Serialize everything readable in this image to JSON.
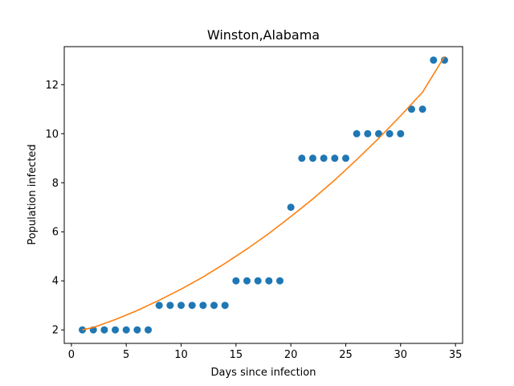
{
  "chart_data": {
    "type": "scatter",
    "title": "Winston,Alabama",
    "xlabel": "Days since infection",
    "ylabel": "Population infected",
    "xlim": [
      -0.65,
      35.65
    ],
    "ylim": [
      1.45,
      13.55
    ],
    "xticks": [
      0,
      5,
      10,
      15,
      20,
      25,
      30,
      35
    ],
    "yticks": [
      2,
      4,
      6,
      8,
      10,
      12
    ],
    "grid": false,
    "legend": "none",
    "series": [
      {
        "kind": "scatter",
        "color": "#1f77b4",
        "x": [
          1,
          2,
          3,
          4,
          5,
          6,
          7,
          8,
          9,
          10,
          11,
          12,
          13,
          14,
          15,
          16,
          17,
          18,
          19,
          20,
          21,
          22,
          23,
          24,
          25,
          26,
          27,
          28,
          29,
          30,
          31,
          32,
          33,
          34
        ],
        "y": [
          2,
          2,
          2,
          2,
          2,
          2,
          2,
          3,
          3,
          3,
          3,
          3,
          3,
          3,
          4,
          4,
          4,
          4,
          4,
          7,
          9,
          9,
          9,
          9,
          9,
          10,
          10,
          10,
          10,
          10,
          11,
          11,
          13,
          13
        ]
      },
      {
        "kind": "line",
        "color": "#ff7f0e",
        "x": [
          1,
          2,
          4,
          6,
          8,
          10,
          12,
          14,
          16,
          18,
          20,
          22,
          24,
          26,
          28,
          30,
          32,
          34
        ],
        "y": [
          2.0,
          2.1,
          2.42,
          2.79,
          3.21,
          3.66,
          4.16,
          4.71,
          5.3,
          5.93,
          6.62,
          7.34,
          8.11,
          8.94,
          9.81,
          10.73,
          11.69,
          13.15
        ]
      }
    ]
  }
}
